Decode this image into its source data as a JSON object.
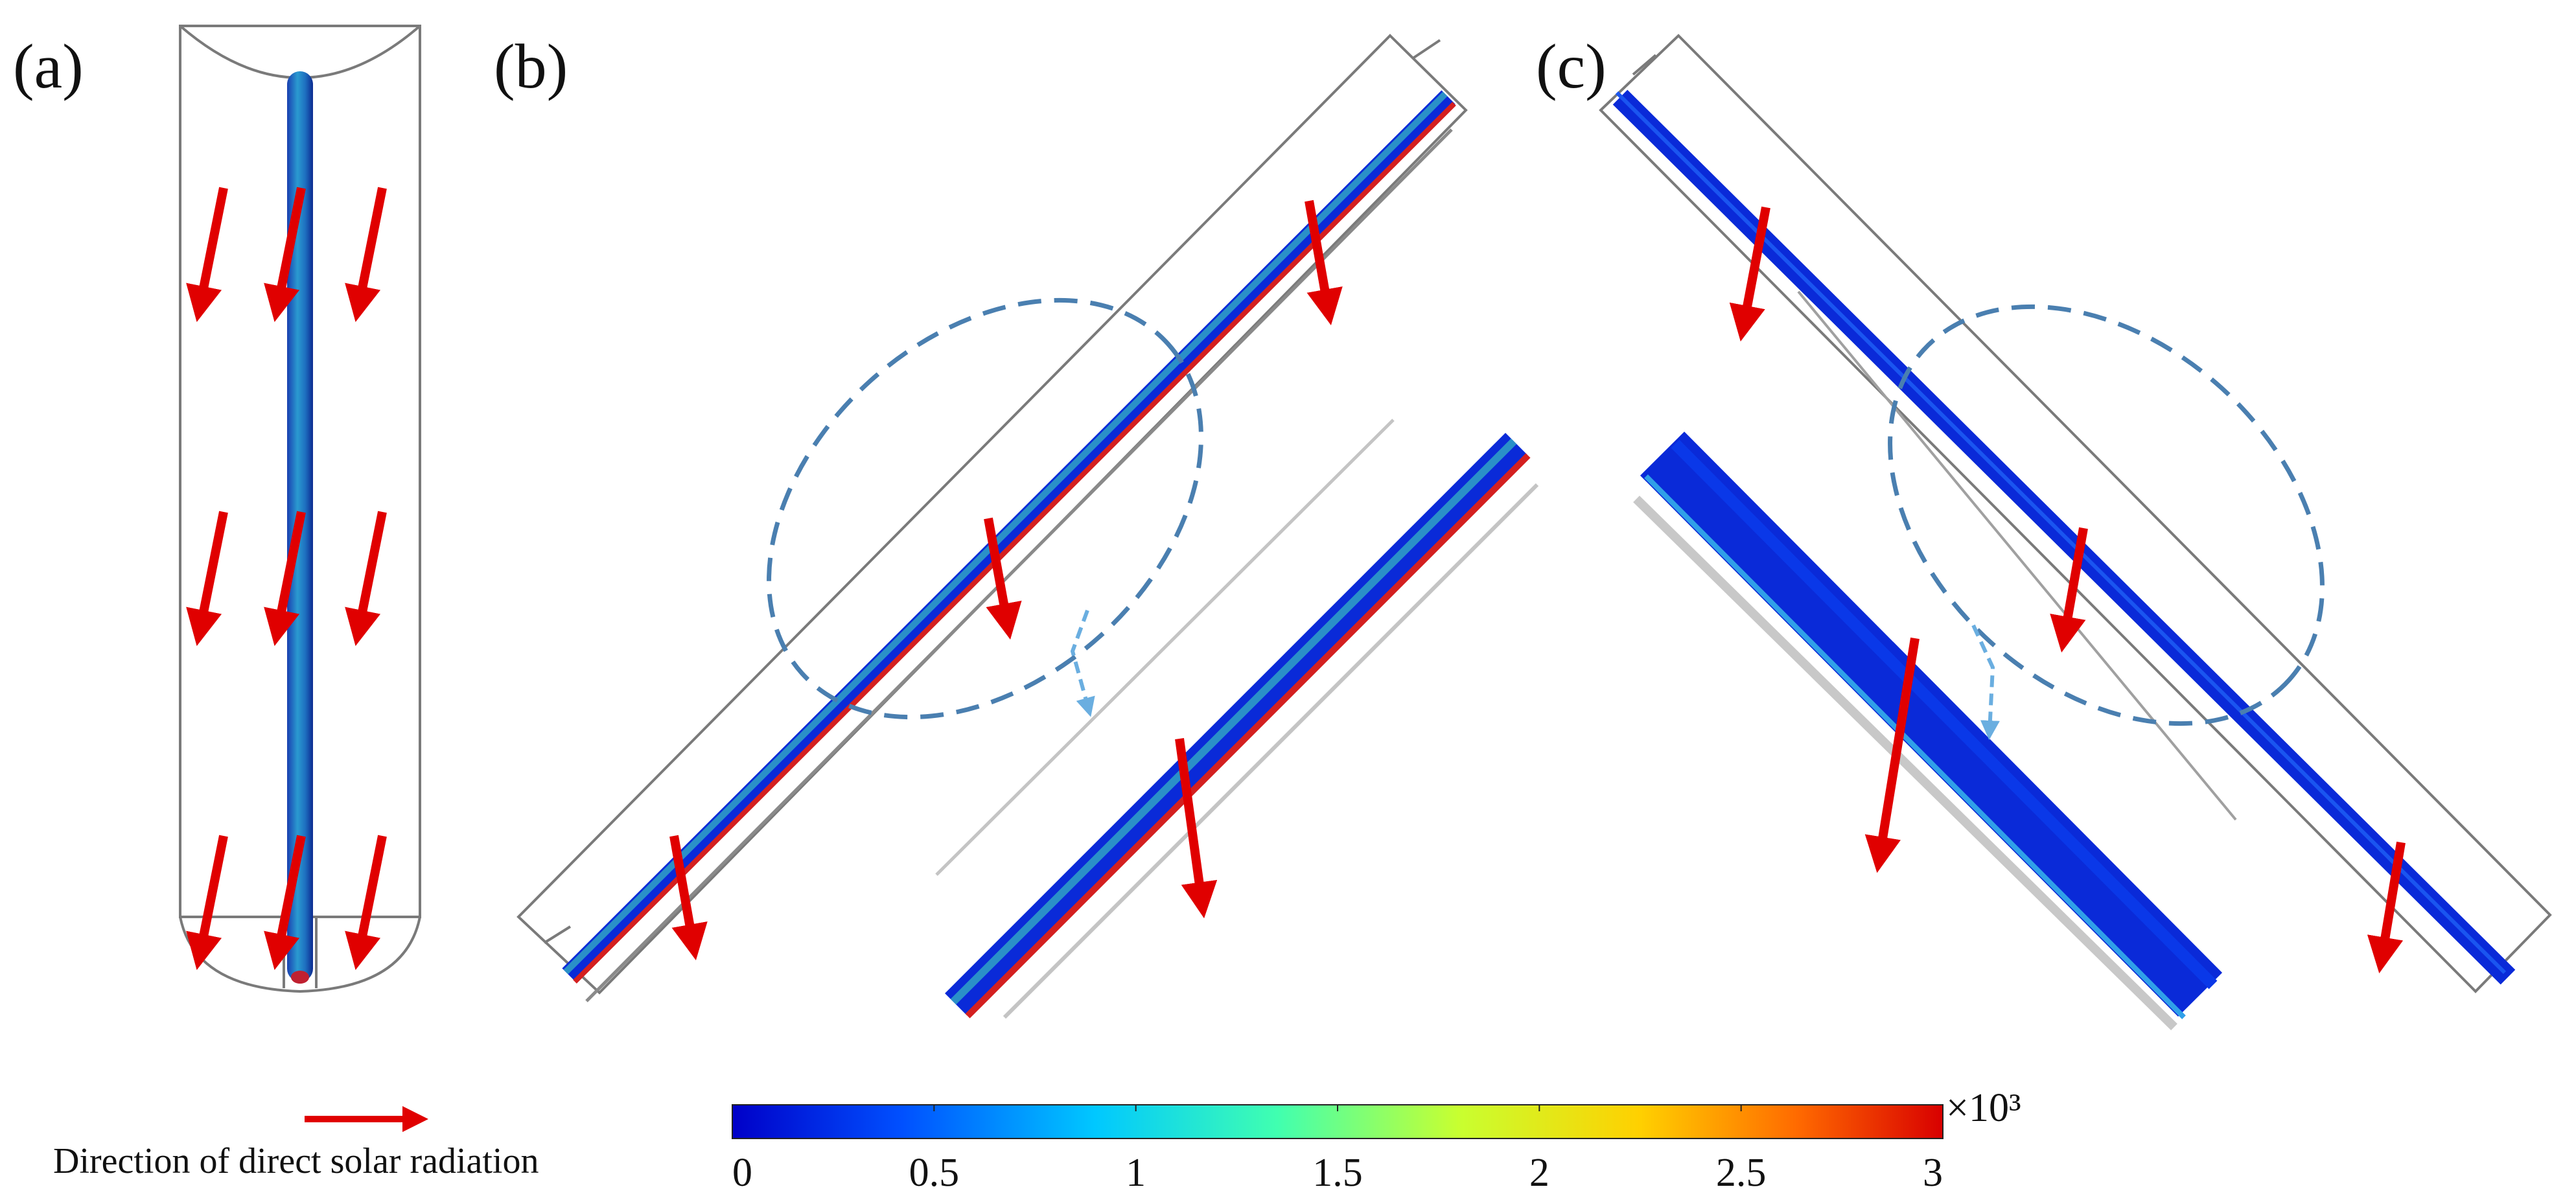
{
  "panels": [
    {
      "id": "a",
      "label": "(a)"
    },
    {
      "id": "b",
      "label": "(b)"
    },
    {
      "id": "c",
      "label": "(c)"
    }
  ],
  "legend": {
    "arrow_label": "Direction of direct solar radiation",
    "arrow_color": "#e00000"
  },
  "colorbar": {
    "min": 0,
    "max": 3,
    "ticks": [
      "0",
      "0.5",
      "1",
      "1.5",
      "2",
      "2.5",
      "3"
    ],
    "multiplier": "×10³",
    "colormap": "jet",
    "colors": [
      "#0000c8",
      "#0050ff",
      "#00c8ff",
      "#40ffb0",
      "#c8ff30",
      "#ffd000",
      "#ff6a00",
      "#d80000"
    ]
  },
  "colors": {
    "tube_blue": "#0a2ad8",
    "tube_cyan": "#2a8fc8",
    "tube_red": "#d42020",
    "callout": "#4a7fb0",
    "callout_arrow": "#6aaee0"
  }
}
